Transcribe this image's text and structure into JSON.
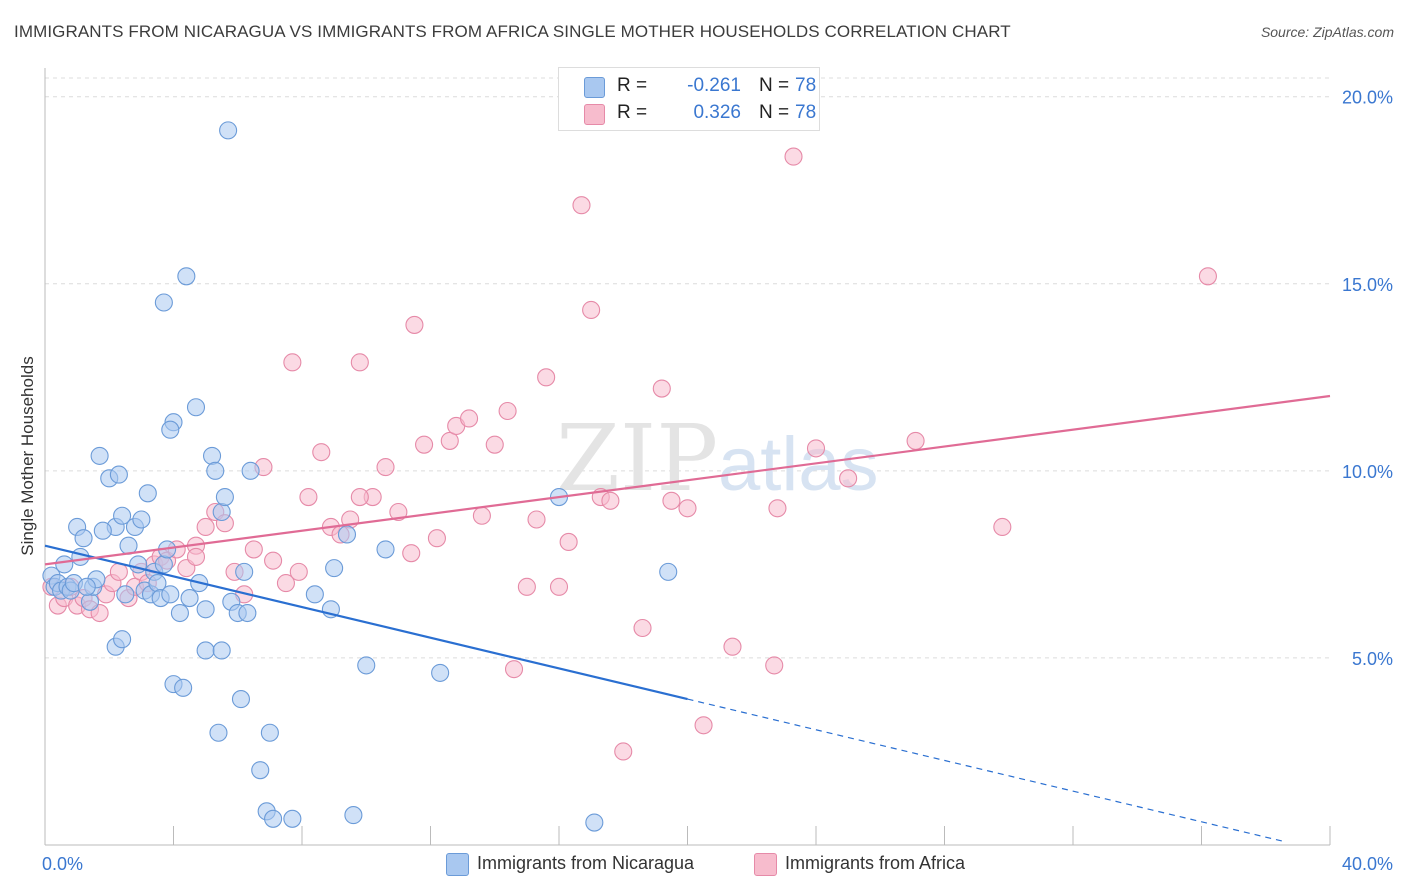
{
  "title": "IMMIGRANTS FROM NICARAGUA VS IMMIGRANTS FROM AFRICA SINGLE MOTHER HOUSEHOLDS CORRELATION CHART",
  "source": "Source: ZipAtlas.com",
  "watermark": {
    "zip": "ZIP",
    "atlas": "atlas"
  },
  "legend": {
    "rows": [
      {
        "r_label": "R =",
        "r_value": "-0.261",
        "n_label": "N =",
        "n_value": "78"
      },
      {
        "r_label": "R =",
        "r_value": "0.326",
        "n_label": "N =",
        "n_value": "78"
      }
    ]
  },
  "bottom_legend": [
    "Immigrants from Nicaragua",
    "Immigrants from Africa"
  ],
  "colors": {
    "blue_fill": "#a9c8f0",
    "blue_stroke": "#6b9bd8",
    "blue_line": "#2a6fd1",
    "pink_fill": "#f7bccd",
    "pink_stroke": "#e68aa8",
    "pink_line": "#e06b95",
    "tick_label": "#3a77d0",
    "grid": "#dcdcdc"
  },
  "chart_data": {
    "type": "scatter",
    "title": "IMMIGRANTS FROM NICARAGUA VS IMMIGRANTS FROM AFRICA SINGLE MOTHER HOUSEHOLDS CORRELATION CHART",
    "xlabel": "",
    "ylabel": "Single Mother Households",
    "xlim": [
      0,
      40
    ],
    "ylim": [
      0,
      20.5
    ],
    "x_tick_labels": [
      "0.0%",
      "40.0%"
    ],
    "y_ticks": [
      5,
      10,
      15,
      20
    ],
    "y_tick_labels": [
      "5.0%",
      "10.0%",
      "15.0%",
      "20.0%"
    ],
    "grid": true,
    "series": [
      {
        "name": "Immigrants from Nicaragua",
        "color": "#a9c8f0",
        "trend": {
          "x": [
            0,
            20
          ],
          "y": [
            8.0,
            3.9
          ],
          "dashed_to_x": 40
        },
        "points": [
          [
            0.2,
            7.2
          ],
          [
            0.3,
            6.9
          ],
          [
            0.4,
            7.0
          ],
          [
            0.5,
            6.8
          ],
          [
            0.6,
            7.5
          ],
          [
            0.7,
            6.9
          ],
          [
            0.8,
            6.8
          ],
          [
            0.9,
            7.0
          ],
          [
            1.0,
            8.5
          ],
          [
            1.1,
            7.7
          ],
          [
            1.2,
            8.2
          ],
          [
            1.4,
            6.5
          ],
          [
            1.5,
            6.9
          ],
          [
            1.6,
            7.1
          ],
          [
            1.3,
            6.9
          ],
          [
            1.7,
            10.4
          ],
          [
            2.0,
            9.8
          ],
          [
            2.2,
            8.5
          ],
          [
            1.8,
            8.4
          ],
          [
            2.3,
            9.9
          ],
          [
            2.5,
            6.7
          ],
          [
            2.4,
            8.8
          ],
          [
            2.6,
            8.0
          ],
          [
            2.8,
            8.5
          ],
          [
            2.9,
            7.5
          ],
          [
            3.0,
            8.7
          ],
          [
            3.2,
            9.4
          ],
          [
            3.1,
            6.8
          ],
          [
            3.3,
            6.7
          ],
          [
            3.4,
            7.3
          ],
          [
            3.5,
            7.0
          ],
          [
            3.6,
            6.6
          ],
          [
            3.7,
            7.5
          ],
          [
            3.8,
            7.9
          ],
          [
            3.9,
            6.7
          ],
          [
            4.0,
            11.3
          ],
          [
            4.2,
            6.2
          ],
          [
            4.5,
            6.6
          ],
          [
            4.7,
            11.7
          ],
          [
            4.8,
            7.0
          ],
          [
            5.0,
            6.3
          ],
          [
            5.2,
            10.4
          ],
          [
            5.3,
            10.0
          ],
          [
            5.5,
            8.9
          ],
          [
            5.6,
            9.3
          ],
          [
            5.8,
            6.5
          ],
          [
            6.0,
            6.2
          ],
          [
            6.2,
            7.3
          ],
          [
            6.3,
            6.2
          ],
          [
            6.4,
            10.0
          ],
          [
            3.7,
            14.5
          ],
          [
            3.9,
            11.1
          ],
          [
            4.4,
            15.2
          ],
          [
            5.7,
            19.1
          ],
          [
            2.2,
            5.3
          ],
          [
            2.4,
            5.5
          ],
          [
            4.0,
            4.3
          ],
          [
            4.3,
            4.2
          ],
          [
            5.0,
            5.2
          ],
          [
            5.5,
            5.2
          ],
          [
            6.1,
            3.9
          ],
          [
            5.4,
            3.0
          ],
          [
            6.7,
            2.0
          ],
          [
            7.0,
            3.0
          ],
          [
            6.9,
            0.9
          ],
          [
            7.1,
            0.7
          ],
          [
            7.7,
            0.7
          ],
          [
            9.6,
            0.8
          ],
          [
            17.1,
            0.6
          ],
          [
            8.4,
            6.7
          ],
          [
            8.9,
            6.3
          ],
          [
            9.0,
            7.4
          ],
          [
            9.4,
            8.3
          ],
          [
            10.6,
            7.9
          ],
          [
            12.3,
            4.6
          ],
          [
            10.0,
            4.8
          ],
          [
            16.0,
            9.3
          ],
          [
            19.4,
            7.3
          ]
        ]
      },
      {
        "name": "Immigrants from Africa",
        "color": "#f7bccd",
        "trend": {
          "x": [
            0,
            40
          ],
          "y": [
            7.5,
            12.0
          ]
        },
        "points": [
          [
            0.2,
            6.9
          ],
          [
            0.4,
            6.4
          ],
          [
            0.6,
            6.6
          ],
          [
            0.8,
            6.9
          ],
          [
            1.0,
            6.4
          ],
          [
            1.2,
            6.6
          ],
          [
            1.4,
            6.3
          ],
          [
            1.7,
            6.2
          ],
          [
            1.9,
            6.7
          ],
          [
            2.1,
            7.0
          ],
          [
            2.3,
            7.3
          ],
          [
            2.6,
            6.6
          ],
          [
            2.8,
            6.9
          ],
          [
            3.0,
            7.3
          ],
          [
            3.2,
            7.0
          ],
          [
            3.4,
            7.5
          ],
          [
            3.6,
            7.7
          ],
          [
            3.8,
            7.6
          ],
          [
            4.1,
            7.9
          ],
          [
            4.4,
            7.4
          ],
          [
            4.7,
            8.0
          ],
          [
            5.0,
            8.5
          ],
          [
            5.3,
            8.9
          ],
          [
            5.6,
            8.6
          ],
          [
            5.9,
            7.3
          ],
          [
            6.2,
            6.7
          ],
          [
            6.5,
            7.9
          ],
          [
            6.8,
            10.1
          ],
          [
            7.1,
            7.6
          ],
          [
            7.5,
            7.0
          ],
          [
            7.9,
            7.3
          ],
          [
            8.2,
            9.3
          ],
          [
            8.6,
            10.5
          ],
          [
            8.9,
            8.5
          ],
          [
            9.2,
            8.3
          ],
          [
            9.5,
            8.7
          ],
          [
            9.8,
            12.9
          ],
          [
            10.2,
            9.3
          ],
          [
            10.6,
            10.1
          ],
          [
            11.0,
            8.9
          ],
          [
            11.4,
            7.8
          ],
          [
            11.8,
            10.7
          ],
          [
            12.2,
            8.2
          ],
          [
            12.6,
            10.8
          ],
          [
            12.8,
            11.2
          ],
          [
            13.2,
            11.4
          ],
          [
            13.6,
            8.8
          ],
          [
            14.0,
            10.7
          ],
          [
            14.4,
            11.6
          ],
          [
            14.6,
            4.7
          ],
          [
            15.0,
            6.9
          ],
          [
            15.3,
            8.7
          ],
          [
            15.6,
            12.5
          ],
          [
            16.0,
            6.9
          ],
          [
            16.3,
            8.1
          ],
          [
            16.7,
            17.1
          ],
          [
            17.0,
            14.3
          ],
          [
            17.3,
            9.3
          ],
          [
            17.6,
            9.2
          ],
          [
            18.0,
            2.5
          ],
          [
            18.6,
            5.8
          ],
          [
            19.2,
            12.2
          ],
          [
            19.5,
            9.2
          ],
          [
            20.0,
            9.0
          ],
          [
            20.5,
            3.2
          ],
          [
            21.4,
            5.3
          ],
          [
            22.7,
            4.8
          ],
          [
            22.8,
            9.0
          ],
          [
            23.3,
            18.4
          ],
          [
            24.0,
            10.6
          ],
          [
            25.0,
            9.8
          ],
          [
            27.1,
            10.8
          ],
          [
            29.8,
            8.5
          ],
          [
            36.2,
            15.2
          ],
          [
            11.5,
            13.9
          ],
          [
            9.8,
            9.3
          ],
          [
            7.7,
            12.9
          ],
          [
            4.7,
            7.7
          ]
        ]
      }
    ]
  }
}
